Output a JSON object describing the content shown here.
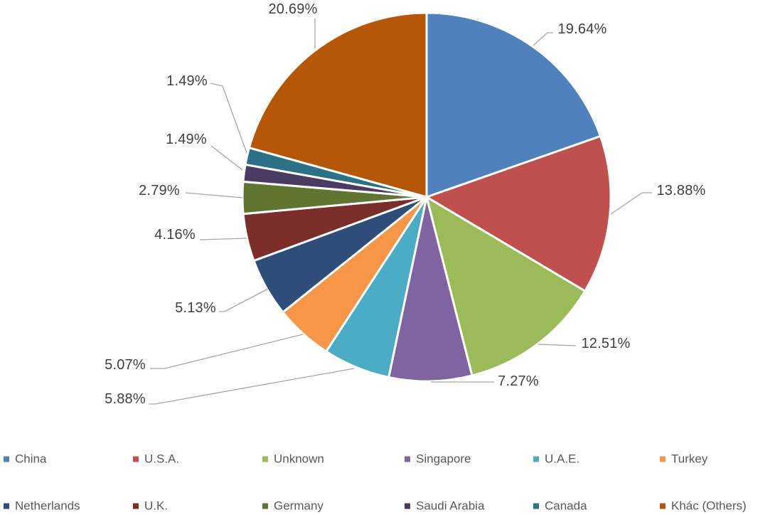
{
  "chart_data": {
    "type": "pie",
    "title": "",
    "categories": [
      "China",
      "U.S.A.",
      "Unknown",
      "Singapore",
      "U.A.E.",
      "Turkey",
      "Netherlands",
      "U.K.",
      "Germany",
      "Saudi Arabia",
      "Canada",
      "Khác (Others)"
    ],
    "values": [
      19.64,
      13.88,
      12.51,
      7.27,
      5.88,
      5.07,
      5.13,
      4.16,
      2.79,
      1.49,
      1.49,
      20.69
    ],
    "labels": [
      "19.64%",
      "13.88%",
      "12.51%",
      "7.27%",
      "5.88%",
      "5.07%",
      "5.13%",
      "4.16%",
      "2.79%",
      "1.49%",
      "1.49%",
      "20.69%"
    ],
    "colors": [
      "#4F81BD",
      "#C0504D",
      "#9BBB59",
      "#8064A2",
      "#4BACC6",
      "#F79646",
      "#2E4E79",
      "#7B2E2A",
      "#5F7530",
      "#4A3B63",
      "#2C7286",
      "#B65708"
    ],
    "slice_border_color": "#FFFFFF",
    "label_color": "#404040",
    "legend_color": "#595959",
    "leader_color": "#A6A6A6",
    "background_color": "#FFFFFF",
    "start_angle": 0,
    "direction": "clockwise",
    "legend_position": "bottom",
    "grid": "off"
  }
}
